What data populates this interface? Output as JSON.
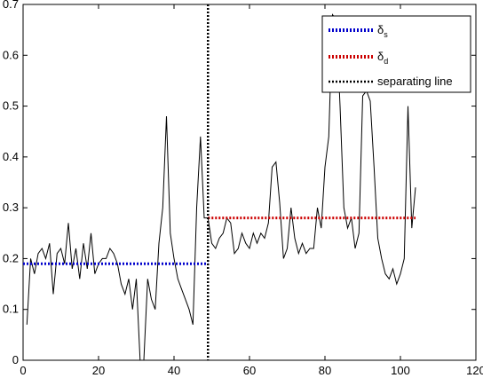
{
  "chart_data": {
    "type": "line",
    "title": "",
    "xlabel": "",
    "ylabel": "",
    "xlim": [
      0,
      120
    ],
    "ylim": [
      0,
      0.7
    ],
    "grid": false,
    "legend_position": "top-right",
    "x_ticks": [
      "0",
      "20",
      "40",
      "60",
      "80",
      "100",
      "120"
    ],
    "y_ticks": [
      "0",
      "0.1",
      "0.2",
      "0.3",
      "0.4",
      "0.5",
      "0.6",
      "0.7"
    ],
    "legend": [
      {
        "symbol": "δ",
        "subscript": "s",
        "color": "#0000cc",
        "style": "dotted"
      },
      {
        "symbol": "δ",
        "subscript": "d",
        "color": "#cc0000",
        "style": "dotted"
      },
      {
        "label": "separating line",
        "color": "#000000",
        "style": "dotted"
      }
    ],
    "series": [
      {
        "color": "#000000",
        "style": "solid",
        "x": [
          1,
          2,
          3,
          4,
          5,
          6,
          7,
          8,
          9,
          10,
          11,
          12,
          13,
          14,
          15,
          16,
          17,
          18,
          19,
          20,
          21,
          22,
          23,
          24,
          25,
          26,
          27,
          28,
          29,
          30,
          31,
          32,
          33,
          34,
          35,
          36,
          37,
          38,
          39,
          40,
          41,
          42,
          43,
          44,
          45,
          46,
          47,
          48,
          49,
          50,
          51,
          52,
          53,
          54,
          55,
          56,
          57,
          58,
          59,
          60,
          61,
          62,
          63,
          64,
          65,
          66,
          67,
          68,
          69,
          70,
          71,
          72,
          73,
          74,
          75,
          76,
          77,
          78,
          79,
          80,
          81,
          82,
          83,
          84,
          85,
          86,
          87,
          88,
          89,
          90,
          91,
          92,
          93,
          94,
          95,
          96,
          97,
          98,
          99,
          100,
          101,
          102,
          103,
          104
        ],
        "y": [
          0.07,
          0.2,
          0.17,
          0.21,
          0.22,
          0.2,
          0.23,
          0.13,
          0.21,
          0.22,
          0.19,
          0.27,
          0.18,
          0.22,
          0.16,
          0.23,
          0.18,
          0.25,
          0.17,
          0.19,
          0.2,
          0.2,
          0.22,
          0.21,
          0.19,
          0.15,
          0.13,
          0.16,
          0.1,
          0.16,
          0.0,
          0.0,
          0.16,
          0.12,
          0.1,
          0.23,
          0.3,
          0.48,
          0.25,
          0.2,
          0.16,
          0.14,
          0.12,
          0.1,
          0.07,
          0.3,
          0.44,
          0.28,
          0.28,
          0.23,
          0.22,
          0.24,
          0.25,
          0.28,
          0.27,
          0.21,
          0.22,
          0.25,
          0.23,
          0.22,
          0.25,
          0.23,
          0.25,
          0.24,
          0.27,
          0.38,
          0.39,
          0.31,
          0.2,
          0.22,
          0.3,
          0.24,
          0.21,
          0.23,
          0.21,
          0.22,
          0.22,
          0.3,
          0.26,
          0.38,
          0.44,
          0.68,
          0.67,
          0.5,
          0.3,
          0.26,
          0.28,
          0.22,
          0.25,
          0.52,
          0.53,
          0.51,
          0.38,
          0.24,
          0.2,
          0.17,
          0.16,
          0.18,
          0.15,
          0.17,
          0.2,
          0.5,
          0.26,
          0.34
        ]
      },
      {
        "color": "#0000cc",
        "style": "dotted",
        "x": [
          0,
          49
        ],
        "y": [
          0.19,
          0.19
        ]
      },
      {
        "color": "#cc0000",
        "style": "dotted",
        "x": [
          49,
          104
        ],
        "y": [
          0.28,
          0.28
        ]
      }
    ],
    "separating_line_x": 49
  }
}
